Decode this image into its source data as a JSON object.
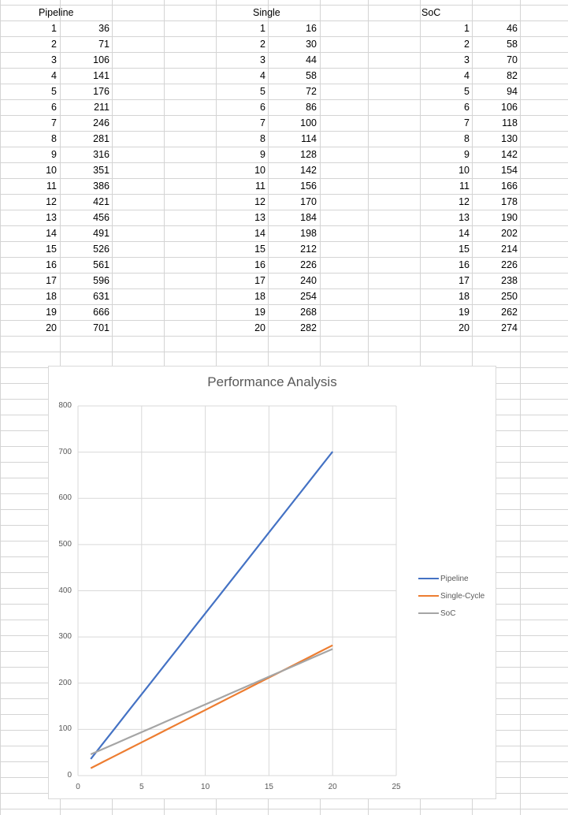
{
  "sheet": {
    "headers": {
      "pipeline": "Pipeline",
      "single": "Single",
      "soc": "SoC"
    },
    "pipeline": [
      [
        1,
        36
      ],
      [
        2,
        71
      ],
      [
        3,
        106
      ],
      [
        4,
        141
      ],
      [
        5,
        176
      ],
      [
        6,
        211
      ],
      [
        7,
        246
      ],
      [
        8,
        281
      ],
      [
        9,
        316
      ],
      [
        10,
        351
      ],
      [
        11,
        386
      ],
      [
        12,
        421
      ],
      [
        13,
        456
      ],
      [
        14,
        491
      ],
      [
        15,
        526
      ],
      [
        16,
        561
      ],
      [
        17,
        596
      ],
      [
        18,
        631
      ],
      [
        19,
        666
      ],
      [
        20,
        701
      ]
    ],
    "single": [
      [
        1,
        16
      ],
      [
        2,
        30
      ],
      [
        3,
        44
      ],
      [
        4,
        58
      ],
      [
        5,
        72
      ],
      [
        6,
        86
      ],
      [
        7,
        100
      ],
      [
        8,
        114
      ],
      [
        9,
        128
      ],
      [
        10,
        142
      ],
      [
        11,
        156
      ],
      [
        12,
        170
      ],
      [
        13,
        184
      ],
      [
        14,
        198
      ],
      [
        15,
        212
      ],
      [
        16,
        226
      ],
      [
        17,
        240
      ],
      [
        18,
        254
      ],
      [
        19,
        268
      ],
      [
        20,
        282
      ]
    ],
    "soc": [
      [
        1,
        46
      ],
      [
        2,
        58
      ],
      [
        3,
        70
      ],
      [
        4,
        82
      ],
      [
        5,
        94
      ],
      [
        6,
        106
      ],
      [
        7,
        118
      ],
      [
        8,
        130
      ],
      [
        9,
        142
      ],
      [
        10,
        154
      ],
      [
        11,
        166
      ],
      [
        12,
        178
      ],
      [
        13,
        190
      ],
      [
        14,
        202
      ],
      [
        15,
        214
      ],
      [
        16,
        226
      ],
      [
        17,
        238
      ],
      [
        18,
        250
      ],
      [
        19,
        262
      ],
      [
        20,
        274
      ]
    ]
  },
  "chart_data": {
    "type": "line",
    "title": "Performance Analysis",
    "xlabel": "",
    "ylabel": "",
    "xlim": [
      0,
      25
    ],
    "ylim": [
      0,
      800
    ],
    "xticks": [
      0,
      5,
      10,
      15,
      20,
      25
    ],
    "yticks": [
      0,
      100,
      200,
      300,
      400,
      500,
      600,
      700,
      800
    ],
    "grid": true,
    "legend_position": "right",
    "x": [
      1,
      2,
      3,
      4,
      5,
      6,
      7,
      8,
      9,
      10,
      11,
      12,
      13,
      14,
      15,
      16,
      17,
      18,
      19,
      20
    ],
    "series": [
      {
        "name": "Pipeline",
        "color": "#4472c4",
        "values": [
          36,
          71,
          106,
          141,
          176,
          211,
          246,
          281,
          316,
          351,
          386,
          421,
          456,
          491,
          526,
          561,
          596,
          631,
          666,
          701
        ]
      },
      {
        "name": "Single-Cycle",
        "color": "#ed7d31",
        "values": [
          16,
          30,
          44,
          58,
          72,
          86,
          100,
          114,
          128,
          142,
          156,
          170,
          184,
          198,
          212,
          226,
          240,
          254,
          268,
          282
        ]
      },
      {
        "name": "SoC",
        "color": "#a5a5a5",
        "values": [
          46,
          58,
          70,
          82,
          94,
          106,
          118,
          130,
          142,
          154,
          166,
          178,
          190,
          202,
          214,
          226,
          238,
          250,
          262,
          274
        ]
      }
    ]
  }
}
